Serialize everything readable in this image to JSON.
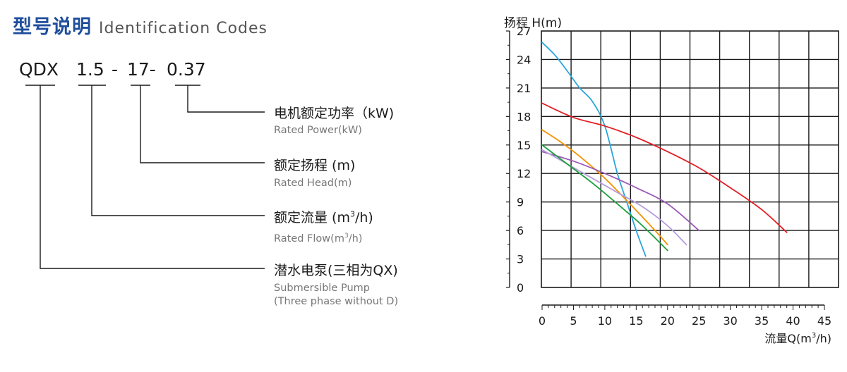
{
  "heading": {
    "cn": "型号说明",
    "en": "Identification Codes"
  },
  "model_code": {
    "seg1": "QDX",
    "seg2": "1.5",
    "sep1": "-",
    "seg3": "17-",
    "seg4": "0.37"
  },
  "labels": [
    {
      "cn": "电机额定功率（kW)",
      "en": "Rated Power(kW)"
    },
    {
      "cn": "额定扬程 (m)",
      "en": "Rated Head(m)"
    },
    {
      "cn_pre": "额定流量 (m",
      "cn_sup": "3",
      "cn_post": "/h)",
      "en_pre": "Rated Flow(m",
      "en_sup": "3",
      "en_post": "/h)"
    },
    {
      "cn": "潜水电泵(三相为QX)",
      "en1": "Submersible Pump",
      "en2": "(Three phase without D)"
    }
  ],
  "chart_data": {
    "type": "line",
    "ylabel": "扬程 H(m)",
    "xlabel_pre": "流量Q(m",
    "xlabel_sup": "3",
    "xlabel_post": "/h)",
    "xlim": [
      0,
      45
    ],
    "ylim": [
      0,
      27
    ],
    "x_ticks": [
      0,
      5,
      10,
      15,
      20,
      25,
      30,
      35,
      40,
      45
    ],
    "y_ticks": [
      0,
      3,
      6,
      9,
      12,
      15,
      18,
      21,
      24,
      27
    ],
    "grid": true,
    "series": [
      {
        "color": "#2aa6dc",
        "points": [
          [
            0,
            25.8
          ],
          [
            2,
            24.5
          ],
          [
            4,
            22.8
          ],
          [
            6,
            21.0
          ],
          [
            8,
            19.6
          ],
          [
            10,
            17.0
          ],
          [
            12,
            12.0
          ],
          [
            13.5,
            9.0
          ],
          [
            15,
            6.0
          ],
          [
            16.5,
            3.3
          ]
        ]
      },
      {
        "color": "#e31e24",
        "points": [
          [
            0,
            19.4
          ],
          [
            5,
            17.9
          ],
          [
            10,
            17.0
          ],
          [
            15,
            15.8
          ],
          [
            20,
            14.3
          ],
          [
            25,
            12.6
          ],
          [
            30,
            10.5
          ],
          [
            35,
            8.2
          ],
          [
            39,
            5.8
          ]
        ]
      },
      {
        "color": "#f39200",
        "points": [
          [
            0,
            16.6
          ],
          [
            3,
            15.3
          ],
          [
            6,
            13.8
          ],
          [
            10,
            11.5
          ],
          [
            14,
            8.8
          ],
          [
            18,
            6.0
          ],
          [
            20,
            4.5
          ]
        ]
      },
      {
        "color": "#9b59b6",
        "points": [
          [
            0,
            14.3
          ],
          [
            5,
            13.3
          ],
          [
            10,
            12.0
          ],
          [
            15,
            10.5
          ],
          [
            20,
            8.8
          ],
          [
            25,
            6.0
          ]
        ]
      },
      {
        "color": "#b39ddb",
        "points": [
          [
            0,
            14.5
          ],
          [
            4,
            13.0
          ],
          [
            8,
            11.5
          ],
          [
            12,
            10.0
          ],
          [
            16,
            8.5
          ],
          [
            20,
            6.5
          ],
          [
            23,
            4.5
          ]
        ]
      },
      {
        "color": "#1b9e3a",
        "points": [
          [
            0,
            15.0
          ],
          [
            4,
            13.0
          ],
          [
            8,
            11.0
          ],
          [
            12,
            8.8
          ],
          [
            16,
            6.5
          ],
          [
            20,
            3.9
          ]
        ]
      }
    ]
  }
}
